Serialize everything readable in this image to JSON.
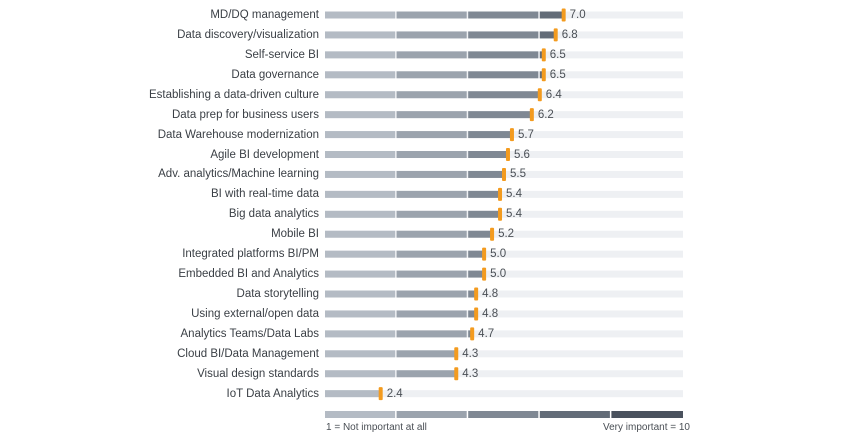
{
  "chart_data": {
    "type": "bar",
    "categories": [
      "MD/DQ management",
      "Data discovery/visualization",
      "Self-service BI",
      "Data governance",
      "Establishing a data-driven culture",
      "Data prep for business users",
      "Data Warehouse modernization",
      "Agile BI development",
      "Adv. analytics/Machine learning",
      "BI with real-time data",
      "Big data analytics",
      "Mobile BI",
      "Integrated platforms BI/PM",
      "Embedded BI and Analytics",
      "Data storytelling",
      "Using external/open data",
      "Analytics Teams/Data Labs",
      "Cloud BI/Data Management",
      "Visual design standards",
      "IoT Data Analytics"
    ],
    "values": [
      7.0,
      6.8,
      6.5,
      6.5,
      6.4,
      6.2,
      5.7,
      5.6,
      5.5,
      5.4,
      5.4,
      5.2,
      5.0,
      5.0,
      4.8,
      4.8,
      4.7,
      4.3,
      4.3,
      2.4
    ],
    "value_labels": [
      "7.0",
      "6.8",
      "6.5",
      "6.5",
      "6.4",
      "6.2",
      "5.7",
      "5.6",
      "5.5",
      "5.4",
      "5.4",
      "5.2",
      "5.0",
      "5.0",
      "4.8",
      "4.8",
      "4.7",
      "4.3",
      "4.3",
      "2.4"
    ],
    "xlim": [
      1,
      10
    ],
    "scale_min_label": "1 = Not important at all",
    "scale_max_label": "Very important = 10",
    "orientation": "horizontal",
    "colors": {
      "band_fills": [
        "#b4bbc4",
        "#9ba3ad",
        "#7f8893",
        "#636c78",
        "#4a525e"
      ],
      "track": "#eef0f3",
      "marker": "#f39b1f"
    }
  }
}
